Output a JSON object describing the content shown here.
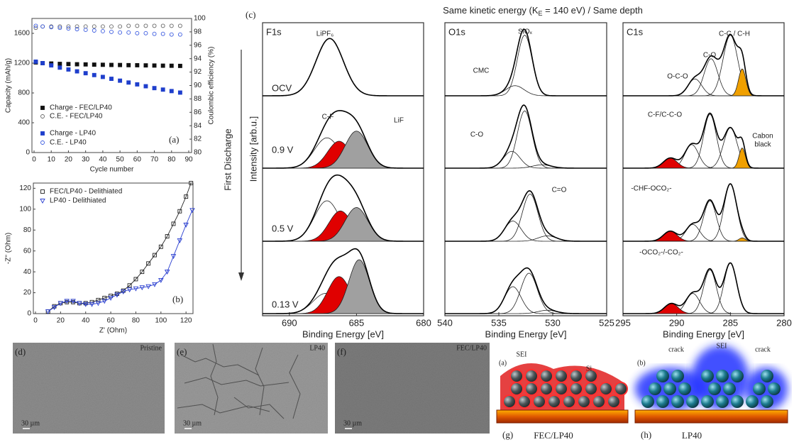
{
  "chart_data": [
    {
      "type": "scatter",
      "panel_label": "(a)",
      "x_label": "Cycle number",
      "y_label": "Capacity (mAh/g)",
      "y2_label": "Coulombic efficiency (%)",
      "xlim": [
        0,
        90
      ],
      "xticks": [
        0,
        10,
        20,
        30,
        40,
        50,
        60,
        70,
        80,
        90
      ],
      "ylim": [
        0,
        1800
      ],
      "yticks": [
        0,
        400,
        800,
        1200,
        1600
      ],
      "y2lim": [
        80,
        100
      ],
      "y2ticks": [
        80,
        82,
        84,
        86,
        88,
        90,
        92,
        94,
        96,
        98,
        100
      ],
      "x": [
        1,
        5,
        10,
        15,
        20,
        25,
        30,
        35,
        40,
        45,
        50,
        55,
        60,
        65,
        70,
        75,
        80,
        85
      ],
      "series": [
        {
          "name": "Charge - FEC/LP40",
          "color": "#111111",
          "marker": "square",
          "filled": true,
          "values": [
            1210,
            1200,
            1195,
            1190,
            1188,
            1185,
            1183,
            1180,
            1178,
            1176,
            1175,
            1173,
            1172,
            1170,
            1168,
            1166,
            1165,
            1163
          ]
        },
        {
          "name": "C.E. - FEC/LP40",
          "color": "#666666",
          "marker": "circle",
          "filled": false,
          "axis": "y2",
          "values": [
            98.6,
            98.8,
            98.8,
            98.8,
            98.8,
            98.8,
            98.8,
            98.8,
            98.8,
            98.8,
            98.8,
            98.9,
            98.9,
            98.9,
            98.9,
            98.9,
            98.9,
            98.9
          ]
        },
        {
          "name": "Charge - LP40",
          "color": "#1f3fcc",
          "marker": "square",
          "filled": true,
          "values": [
            1220,
            1200,
            1170,
            1140,
            1115,
            1090,
            1065,
            1040,
            1015,
            990,
            965,
            940,
            915,
            890,
            865,
            845,
            825,
            805
          ]
        },
        {
          "name": "C.E. - LP40",
          "color": "#3a5ae0",
          "marker": "circle",
          "filled": false,
          "axis": "y2",
          "values": [
            98.9,
            98.8,
            98.7,
            98.6,
            98.5,
            98.4,
            98.3,
            98.2,
            98.1,
            98.0,
            97.9,
            97.9,
            97.8,
            97.8,
            97.7,
            97.7,
            97.6,
            97.6
          ]
        }
      ]
    },
    {
      "type": "scatter",
      "panel_label": "(b)",
      "x_label": "Z' (Ohm)",
      "y_label": "-Z'' (Ohm)",
      "xlim": [
        0,
        125
      ],
      "xticks": [
        0,
        20,
        40,
        60,
        80,
        100,
        120
      ],
      "ylim": [
        0,
        125
      ],
      "yticks": [
        0,
        20,
        40,
        60,
        80,
        100,
        120
      ],
      "series": [
        {
          "name": "FEC/LP40 - Delithiated",
          "color": "#222222",
          "marker": "square",
          "filled": false,
          "line": true,
          "x": [
            10,
            15,
            20,
            25,
            30,
            35,
            40,
            45,
            50,
            55,
            60,
            65,
            70,
            75,
            80,
            85,
            90,
            95,
            100,
            105,
            110,
            115,
            120,
            124
          ],
          "values": [
            2,
            7,
            10,
            11,
            11,
            10,
            10,
            11,
            13,
            15,
            17,
            19,
            22,
            27,
            33,
            40,
            48,
            56,
            64,
            74,
            86,
            98,
            112,
            125
          ]
        },
        {
          "name": "LP40 - Delithiated",
          "color": "#2a3fd0",
          "marker": "triangle",
          "filled": false,
          "line": true,
          "x": [
            10,
            15,
            20,
            25,
            30,
            35,
            40,
            45,
            50,
            55,
            60,
            65,
            70,
            75,
            80,
            85,
            90,
            95,
            100,
            105,
            110,
            115,
            120,
            125
          ],
          "values": [
            2,
            6,
            10,
            12,
            12,
            10,
            9,
            9,
            10,
            12,
            15,
            18,
            21,
            23,
            24,
            25,
            26,
            28,
            32,
            40,
            55,
            70,
            85,
            99
          ]
        }
      ]
    },
    {
      "type": "xps",
      "title": "F1s",
      "x_label": "Binding Energy [eV]",
      "xlim": [
        692,
        680
      ],
      "xticks": [
        690,
        685,
        680
      ],
      "annotations": [
        "LiPF₆",
        "C-F",
        "LiF"
      ],
      "rows": [
        {
          "components": [
            {
              "center": 687,
              "fwhm": 2.4,
              "height": 0.85,
              "fill": "none"
            }
          ]
        },
        {
          "components": [
            {
              "center": 687.2,
              "fwhm": 2.2,
              "height": 0.45,
              "fill": "none"
            },
            {
              "center": 686.3,
              "fwhm": 2.0,
              "height": 0.4,
              "fill": "#e00000"
            },
            {
              "center": 685,
              "fwhm": 2.0,
              "height": 0.55,
              "fill": "#a0a0a0"
            }
          ]
        },
        {
          "components": [
            {
              "center": 687.2,
              "fwhm": 2.2,
              "height": 0.6,
              "fill": "none"
            },
            {
              "center": 686.2,
              "fwhm": 2.0,
              "height": 0.45,
              "fill": "#e00000"
            },
            {
              "center": 685,
              "fwhm": 2.0,
              "height": 0.5,
              "fill": "#a0a0a0"
            }
          ]
        },
        {
          "components": [
            {
              "center": 687.3,
              "fwhm": 2.2,
              "height": 0.3,
              "fill": "none"
            },
            {
              "center": 686.3,
              "fwhm": 2.0,
              "height": 0.55,
              "fill": "#e00000"
            },
            {
              "center": 684.8,
              "fwhm": 1.8,
              "height": 0.8,
              "fill": "#a0a0a0"
            }
          ]
        }
      ]
    },
    {
      "type": "xps",
      "title": "O1s",
      "x_label": "Binding Energy [eV]",
      "xlim": [
        540,
        525
      ],
      "xticks": [
        540,
        535,
        530,
        525
      ],
      "annotations": [
        "SiOₓ",
        "CMC",
        "C-O",
        "C=O"
      ],
      "rows": [
        {
          "components": [
            {
              "center": 532.6,
              "fwhm": 1.6,
              "height": 0.9,
              "fill": "none"
            },
            {
              "center": 533.5,
              "fwhm": 2.0,
              "height": 0.15,
              "fill": "none"
            }
          ]
        },
        {
          "components": [
            {
              "center": 532.6,
              "fwhm": 1.6,
              "height": 0.85,
              "fill": "none"
            },
            {
              "center": 533.8,
              "fwhm": 1.8,
              "height": 0.25,
              "fill": "none"
            },
            {
              "center": 531,
              "fwhm": 2.0,
              "height": 0.05,
              "fill": "none"
            }
          ]
        },
        {
          "components": [
            {
              "center": 532.1,
              "fwhm": 1.7,
              "height": 0.7,
              "fill": "none"
            },
            {
              "center": 533.7,
              "fwhm": 1.8,
              "height": 0.3,
              "fill": "none"
            },
            {
              "center": 530.5,
              "fwhm": 2.0,
              "height": 0.08,
              "fill": "none"
            }
          ]
        },
        {
          "components": [
            {
              "center": 532.2,
              "fwhm": 1.8,
              "height": 0.6,
              "fill": "none"
            },
            {
              "center": 533.7,
              "fwhm": 1.8,
              "height": 0.4,
              "fill": "none"
            },
            {
              "center": 530.5,
              "fwhm": 2.0,
              "height": 0.05,
              "fill": "none"
            }
          ]
        }
      ]
    },
    {
      "type": "xps",
      "title": "C1s",
      "x_label": "Binding Energy [eV]",
      "xlim": [
        295,
        280
      ],
      "xticks": [
        295,
        290,
        285,
        280
      ],
      "annotations": [
        "C-C / C-H",
        "C-O",
        "O-C-O",
        "C-F/C-C-O",
        "Cabon",
        "black",
        "-CHF-OCO₂-",
        "-OCO₂-/-CO₂-"
      ],
      "rows": [
        {
          "components": [
            {
              "center": 285,
              "fwhm": 1.6,
              "height": 0.9,
              "fill": "none"
            },
            {
              "center": 286.8,
              "fwhm": 1.5,
              "height": 0.55,
              "fill": "none"
            },
            {
              "center": 288.3,
              "fwhm": 1.5,
              "height": 0.25,
              "fill": "none"
            },
            {
              "center": 283.9,
              "fwhm": 0.8,
              "height": 0.4,
              "fill": "#f0a000"
            }
          ]
        },
        {
          "components": [
            {
              "center": 285,
              "fwhm": 1.5,
              "height": 0.6,
              "fill": "none"
            },
            {
              "center": 286.9,
              "fwhm": 1.4,
              "height": 0.8,
              "fill": "none"
            },
            {
              "center": 288.6,
              "fwhm": 1.5,
              "height": 0.35,
              "fill": "none"
            },
            {
              "center": 290.6,
              "fwhm": 1.5,
              "height": 0.15,
              "fill": "#e00000"
            },
            {
              "center": 283.9,
              "fwhm": 0.7,
              "height": 0.3,
              "fill": "#f0a000"
            }
          ]
        },
        {
          "components": [
            {
              "center": 285,
              "fwhm": 1.4,
              "height": 0.85,
              "fill": "none"
            },
            {
              "center": 286.9,
              "fwhm": 1.4,
              "height": 0.6,
              "fill": "none"
            },
            {
              "center": 288.5,
              "fwhm": 1.5,
              "height": 0.25,
              "fill": "none"
            },
            {
              "center": 290.6,
              "fwhm": 1.5,
              "height": 0.15,
              "fill": "#e00000"
            },
            {
              "center": 283.9,
              "fwhm": 0.7,
              "height": 0.05,
              "fill": "#f0a000"
            }
          ]
        },
        {
          "components": [
            {
              "center": 285,
              "fwhm": 1.4,
              "height": 0.75,
              "fill": "none"
            },
            {
              "center": 286.9,
              "fwhm": 1.4,
              "height": 0.65,
              "fill": "none"
            },
            {
              "center": 288.5,
              "fwhm": 1.5,
              "height": 0.3,
              "fill": "none"
            },
            {
              "center": 290.5,
              "fwhm": 1.5,
              "height": 0.15,
              "fill": "#e00000"
            }
          ]
        }
      ]
    }
  ],
  "figure_c": {
    "panel_label": "(c)",
    "header_pre": "Same kinetic energy (K",
    "header_sub": "E",
    "header_post": " = 140 eV) / Same depth",
    "arrow_label": "First Discharge",
    "intensity_label": "Intensity [arb.u.]",
    "rows": [
      "OCV",
      "0.9 V",
      "0.5 V",
      "0.13 V"
    ]
  },
  "images": [
    {
      "label": "(d)",
      "caption": "Pristine",
      "scale": "30 µm"
    },
    {
      "label": "(e)",
      "caption": "LP40",
      "scale": "30 µm"
    },
    {
      "label": "(f)",
      "caption": "FEC/LP40",
      "scale": "30 µm"
    }
  ],
  "schematics": [
    {
      "label": "(a)",
      "panel_label": "(g)",
      "caption": "FEC/LP40",
      "texts": [
        "SEI",
        "Si"
      ]
    },
    {
      "label": "(b)",
      "panel_label": "(h)",
      "caption": "LP40",
      "texts": [
        "crack",
        "SEI",
        "crack"
      ]
    }
  ]
}
